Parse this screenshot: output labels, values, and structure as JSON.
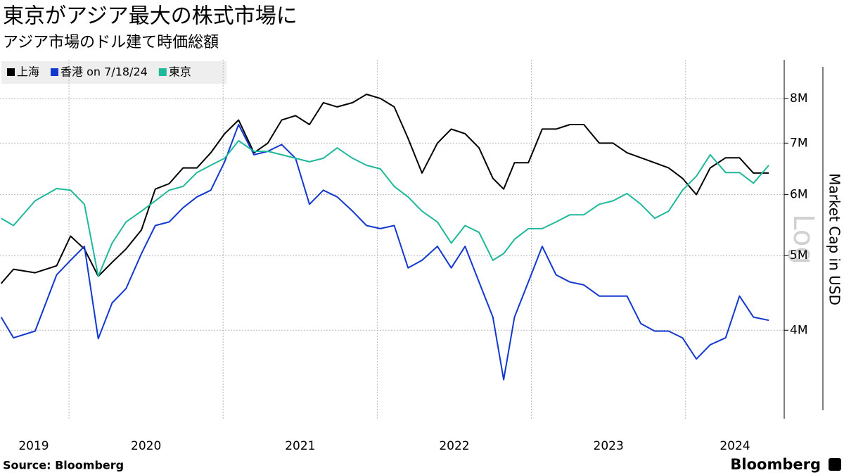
{
  "chart_data": {
    "type": "line",
    "title": "東京がアジア最大の株式市場に",
    "subtitle": "アジア市場のドル建て時価総額",
    "y_label": "Market Cap in USD",
    "y_scale_label": "Log",
    "source": "Source:  Bloomberg",
    "brand": "Bloomberg",
    "log_scale": true,
    "grid": true,
    "legend": "top-left",
    "x": [
      2019.56,
      2019.64,
      2019.78,
      2019.92,
      2020.01,
      2020.1,
      2020.19,
      2020.28,
      2020.37,
      2020.47,
      2020.56,
      2020.65,
      2020.74,
      2020.83,
      2020.92,
      2021.01,
      2021.1,
      2021.2,
      2021.29,
      2021.38,
      2021.47,
      2021.56,
      2021.65,
      2021.74,
      2021.84,
      2021.93,
      2022.02,
      2022.11,
      2022.2,
      2022.29,
      2022.39,
      2022.48,
      2022.57,
      2022.66,
      2022.75,
      2022.82,
      2022.89,
      2022.98,
      2023.07,
      2023.16,
      2023.25,
      2023.34,
      2023.44,
      2023.53,
      2023.62,
      2023.71,
      2023.8,
      2023.89,
      2023.98,
      2024.07,
      2024.16,
      2024.26,
      2024.35,
      2024.44,
      2024.54
    ],
    "series": [
      {
        "name": "上海",
        "color": "#000000",
        "values": [
          4.6,
          4.8,
          4.75,
          4.85,
          5.3,
          5.1,
          4.7,
          4.9,
          5.1,
          5.4,
          6.1,
          6.2,
          6.5,
          6.5,
          6.8,
          7.2,
          7.5,
          6.8,
          7.0,
          7.5,
          7.6,
          7.4,
          7.9,
          7.8,
          7.9,
          8.1,
          8.0,
          7.8,
          7.1,
          6.4,
          7.0,
          7.3,
          7.2,
          6.9,
          6.3,
          6.1,
          6.6,
          6.6,
          7.3,
          7.3,
          7.4,
          7.4,
          7.0,
          7.0,
          6.8,
          6.7,
          6.6,
          6.5,
          6.3,
          6.0,
          6.5,
          6.7,
          6.7,
          6.4,
          6.4
        ]
      },
      {
        "name": "香港 on 7/18/24",
        "color": "#1238d0",
        "values": [
          4.16,
          3.91,
          3.99,
          4.72,
          4.93,
          5.14,
          3.9,
          4.34,
          4.53,
          5.03,
          5.47,
          5.53,
          5.77,
          5.96,
          6.08,
          6.62,
          7.4,
          6.76,
          6.83,
          6.97,
          6.69,
          5.83,
          6.08,
          5.96,
          5.71,
          5.47,
          5.42,
          5.47,
          4.82,
          4.93,
          5.14,
          4.82,
          5.14,
          4.62,
          4.16,
          3.45,
          4.16,
          4.62,
          5.14,
          4.72,
          4.62,
          4.58,
          4.43,
          4.43,
          4.43,
          4.08,
          3.99,
          3.99,
          3.91,
          3.67,
          3.83,
          3.91,
          4.43,
          4.16,
          4.12
        ]
      },
      {
        "name": "東京",
        "color": "#1fb89a",
        "values": [
          5.59,
          5.47,
          5.89,
          6.11,
          6.08,
          5.83,
          4.7,
          5.19,
          5.53,
          5.71,
          5.89,
          6.08,
          6.15,
          6.41,
          6.55,
          6.69,
          7.05,
          6.83,
          6.83,
          6.76,
          6.69,
          6.62,
          6.69,
          6.9,
          6.69,
          6.55,
          6.48,
          6.15,
          5.96,
          5.71,
          5.53,
          5.19,
          5.47,
          5.36,
          4.93,
          5.03,
          5.25,
          5.42,
          5.42,
          5.53,
          5.65,
          5.65,
          5.83,
          5.89,
          6.02,
          5.83,
          5.59,
          5.71,
          6.08,
          6.34,
          6.76,
          6.41,
          6.41,
          6.21,
          6.55
        ]
      }
    ],
    "xlim": [
      2019.5525,
      2024.64
    ],
    "xticks": [
      2019,
      2020,
      2021,
      2022,
      2023,
      2024
    ],
    "ylim": [
      3.07,
      8.98
    ],
    "yticks": [
      {
        "value": 4,
        "label": "4M"
      },
      {
        "value": 5,
        "label": "5M"
      },
      {
        "value": 6,
        "label": "6M"
      },
      {
        "value": 7,
        "label": "7M"
      },
      {
        "value": 8,
        "label": "8M"
      }
    ]
  }
}
